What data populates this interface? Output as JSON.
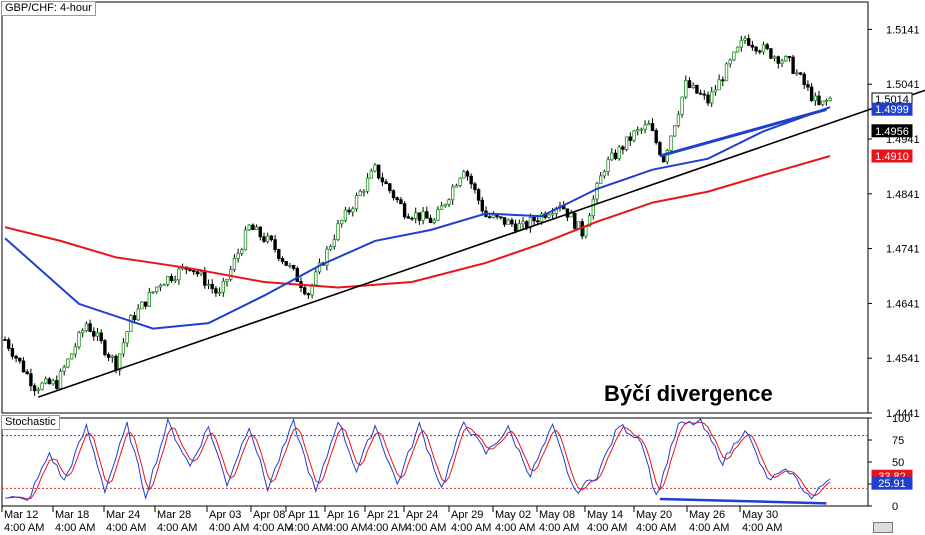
{
  "window": {
    "main_title": "GBP/CHF: 4-hour",
    "sub_title": "Stochastic",
    "annotation": "Býčí divergence"
  },
  "chart_data": [
    {
      "type": "candlestick",
      "title": "GBP/CHF: 4-hour",
      "ylim": [
        1.4441,
        1.5191
      ],
      "y_ticks": [
        "1.5141",
        "1.5041",
        "1.4941",
        "1.4841",
        "1.4741",
        "1.4641",
        "1.4541",
        "1.4441"
      ],
      "x_ticks": [
        "Mar 12\n4:00 AM",
        "Mar 18\n4:00 AM",
        "Mar 24\n4:00 AM",
        "Mar 28\n4:00 AM",
        "Apr 03\n4:00 AM",
        "Apr 08\n4:00 AM",
        "Apr 11\n4:00 AM",
        "Apr 16\n4:00 AM",
        "Apr 21\n4:00 AM",
        "Apr 24\n4:00 AM",
        "Apr 29\n4:00 AM",
        "May 02\n4:00 AM",
        "May 08\n4:00 AM",
        "May 14\n4:00 AM",
        "May 20\n4:00 AM",
        "May 26\n4:00 AM",
        "May 30\n4:00 AM"
      ],
      "price_labels": [
        {
          "text": "1.5014",
          "bg": "#ffffff",
          "fg": "#000000"
        },
        {
          "text": "1.4999",
          "bg": "#1f3fcf",
          "fg": "#ffffff"
        },
        {
          "text": "1.4956",
          "bg": "#000000",
          "fg": "#ffffff"
        },
        {
          "text": "1.4910",
          "bg": "#e8141c",
          "fg": "#ffffff"
        }
      ],
      "label_values": [
        1.5014,
        1.4999,
        1.4956,
        1.491
      ],
      "close_path": [
        [
          0,
          1.4575
        ],
        [
          8,
          1.449
        ],
        [
          14,
          1.4495
        ],
        [
          22,
          1.4605
        ],
        [
          30,
          1.453
        ],
        [
          34,
          1.461
        ],
        [
          42,
          1.468
        ],
        [
          50,
          1.471
        ],
        [
          58,
          1.4655
        ],
        [
          66,
          1.478
        ],
        [
          72,
          1.475
        ],
        [
          82,
          1.466
        ],
        [
          90,
          1.478
        ],
        [
          100,
          1.4885
        ],
        [
          108,
          1.481
        ],
        [
          116,
          1.479
        ],
        [
          124,
          1.489
        ],
        [
          130,
          1.48
        ],
        [
          140,
          1.478
        ],
        [
          150,
          1.4825
        ],
        [
          156,
          1.477
        ],
        [
          162,
          1.489
        ],
        [
          170,
          1.495
        ],
        [
          174,
          1.4965
        ],
        [
          178,
          1.4905
        ],
        [
          184,
          1.504
        ],
        [
          190,
          1.501
        ],
        [
          200,
          1.5125
        ],
        [
          206,
          1.51
        ],
        [
          212,
          1.508
        ],
        [
          216,
          1.504
        ],
        [
          220,
          1.5
        ],
        [
          223,
          1.5014
        ]
      ],
      "n_bars": 224,
      "ma_blue": [
        [
          0,
          1.476
        ],
        [
          20,
          1.464
        ],
        [
          40,
          1.4595
        ],
        [
          55,
          1.4605
        ],
        [
          70,
          1.4655
        ],
        [
          85,
          1.471
        ],
        [
          100,
          1.4755
        ],
        [
          115,
          1.4775
        ],
        [
          130,
          1.4805
        ],
        [
          145,
          1.48
        ],
        [
          160,
          1.485
        ],
        [
          175,
          1.4885
        ],
        [
          190,
          1.4905
        ],
        [
          205,
          1.4955
        ],
        [
          223,
          1.4999
        ]
      ],
      "ma_red": [
        [
          0,
          1.478
        ],
        [
          15,
          1.4755
        ],
        [
          30,
          1.4725
        ],
        [
          50,
          1.4705
        ],
        [
          70,
          1.468
        ],
        [
          90,
          1.467
        ],
        [
          110,
          1.468
        ],
        [
          130,
          1.4715
        ],
        [
          145,
          1.475
        ],
        [
          160,
          1.479
        ],
        [
          175,
          1.4825
        ],
        [
          190,
          1.4845
        ],
        [
          205,
          1.4875
        ],
        [
          223,
          1.491
        ]
      ],
      "trendline": {
        "from": [
          9,
          1.447
        ],
        "to": [
          253,
          1.504
        ],
        "color": "#000000"
      },
      "divergence_line": {
        "from": [
          177,
          1.491
        ],
        "to": [
          222,
          1.4995
        ],
        "color": "#1f3fcf"
      }
    },
    {
      "type": "line",
      "title": "Stochastic",
      "ylim": [
        0,
        100
      ],
      "y_ticks": [
        "100",
        "75",
        "50",
        "25",
        "0"
      ],
      "levels": [
        80,
        20
      ],
      "values_label": [
        {
          "text": "33.82",
          "bg": "#e8141c",
          "fg": "#ffffff"
        },
        {
          "text": "25.91",
          "bg": "#1f3fcf",
          "fg": "#ffffff"
        }
      ],
      "label_values": [
        33.82,
        25.91
      ],
      "stoch_path": [
        [
          0,
          12
        ],
        [
          6,
          5
        ],
        [
          12,
          60
        ],
        [
          16,
          28
        ],
        [
          22,
          90
        ],
        [
          27,
          18
        ],
        [
          33,
          92
        ],
        [
          38,
          12
        ],
        [
          44,
          95
        ],
        [
          50,
          45
        ],
        [
          55,
          90
        ],
        [
          60,
          25
        ],
        [
          66,
          92
        ],
        [
          71,
          20
        ],
        [
          78,
          95
        ],
        [
          84,
          15
        ],
        [
          90,
          98
        ],
        [
          95,
          40
        ],
        [
          100,
          92
        ],
        [
          106,
          25
        ],
        [
          112,
          92
        ],
        [
          118,
          20
        ],
        [
          124,
          96
        ],
        [
          130,
          60
        ],
        [
          136,
          88
        ],
        [
          142,
          35
        ],
        [
          148,
          90
        ],
        [
          154,
          15
        ],
        [
          160,
          35
        ],
        [
          166,
          92
        ],
        [
          172,
          75
        ],
        [
          176,
          10
        ],
        [
          182,
          92
        ],
        [
          188,
          95
        ],
        [
          194,
          50
        ],
        [
          200,
          88
        ],
        [
          206,
          30
        ],
        [
          212,
          40
        ],
        [
          218,
          8
        ],
        [
          223,
          34
        ]
      ],
      "divergence_line": {
        "from": [
          177,
          8
        ],
        "to": [
          222,
          3
        ],
        "color": "#1f3fcf"
      }
    }
  ]
}
